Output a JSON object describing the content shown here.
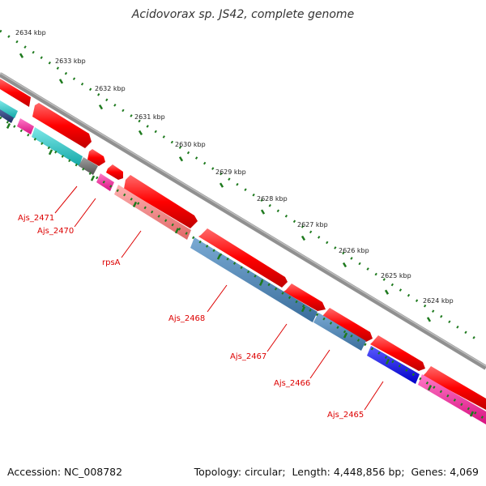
{
  "title": "Acidovorax sp. JS42, complete genome",
  "footer": {
    "accession_label": "Accession:",
    "accession": "NC_008782",
    "topology_label": "Topology:",
    "topology": "circular",
    "length_label": "Length:",
    "length": "4,448,856 bp",
    "genes_label": "Genes:",
    "genes": "4,069"
  },
  "ticks": [
    "2634 kbp",
    "2633 kbp",
    "2632 kbp",
    "2631 kbp",
    "2630 kbp",
    "2629 kbp",
    "2628 kbp",
    "2627 kbp",
    "2626 kbp",
    "2625 kbp",
    "2624 kbp"
  ],
  "gene_labels": [
    "Ajs_2471",
    "Ajs_2470",
    "rpsA",
    "Ajs_2468",
    "Ajs_2467",
    "Ajs_2466",
    "Ajs_2465"
  ],
  "colors": {
    "backbone": "#808080",
    "forward_feature": "#ff0000",
    "cyan_feature": "#1ec8c8",
    "magenta_feature": "#ff1ea0",
    "grey_feature": "#707070",
    "salmon_feature": "#f08080",
    "steelblue_feature": "#4682b4",
    "blue_feature": "#0000ff",
    "navy_feature": "#283c78",
    "tick_marks": "#1e7a1e",
    "label_text": "#dd0000",
    "tick_text": "#222222"
  }
}
